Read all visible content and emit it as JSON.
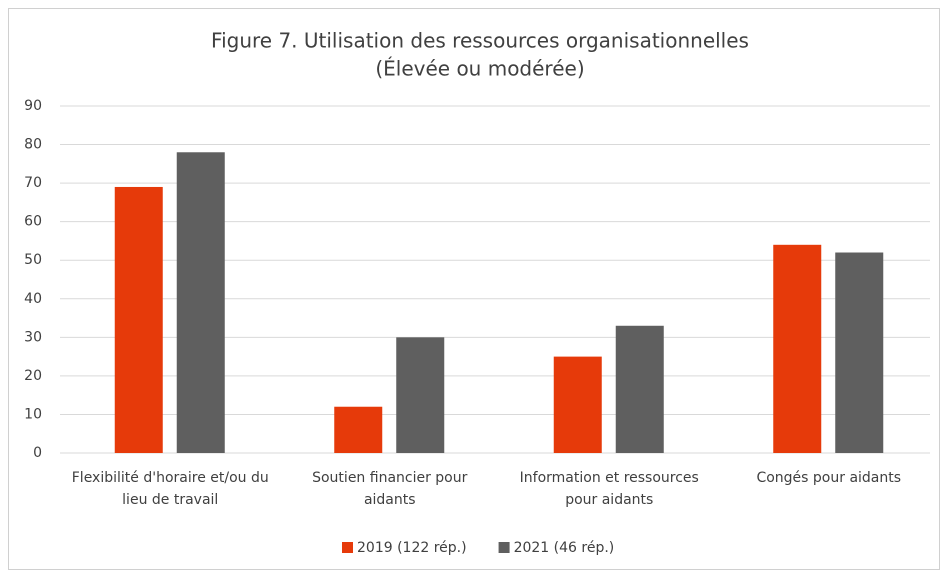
{
  "chart_data": {
    "type": "bar",
    "title": "Figure 7. Utilisation des ressources organisationnelles",
    "subtitle": "(Élevée ou modérée)",
    "categories": [
      "Flexibilité d'horaire et/ou du lieu de travail",
      "Soutien financier pour aidants",
      "Information et ressources pour aidants",
      "Congés pour aidants"
    ],
    "series": [
      {
        "name": "2019 (122 rép.)",
        "color": "#e63a0a",
        "values": [
          69,
          12,
          25,
          54
        ]
      },
      {
        "name": "2021 (46 rép.)",
        "color": "#5f5f5f",
        "values": [
          78,
          30,
          33,
          52
        ]
      }
    ],
    "ylim": [
      0,
      90
    ],
    "yticks": [
      0,
      10,
      20,
      30,
      40,
      50,
      60,
      70,
      80,
      90
    ],
    "grid": true,
    "legend": "bottom"
  }
}
